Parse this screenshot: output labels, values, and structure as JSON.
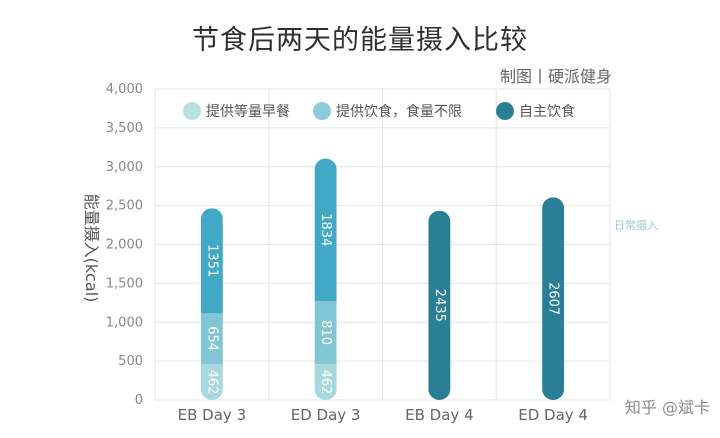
{
  "title": "节食后两天的能量摄入比较",
  "credit": "制图丨硬派健身",
  "watermark": "知乎 @斌卡",
  "chart_data": {
    "type": "bar",
    "stacked": true,
    "categories": [
      "EB Day 3",
      "ED Day 3",
      "EB Day 4",
      "ED Day 4"
    ],
    "series": [
      {
        "name": "提供等量早餐",
        "color": "#a7d8dd",
        "values": [
          462,
          462,
          null,
          null
        ]
      },
      {
        "name": "提供饮食，食量不限",
        "color": "#82c5d4",
        "values": [
          654,
          810,
          null,
          null
        ]
      },
      {
        "name": "自主饮食",
        "color": "#41a9c6",
        "values": [
          1351,
          1834,
          null,
          null
        ]
      },
      {
        "name": "自主饮食",
        "color": "#2a7f97",
        "values": [
          null,
          null,
          2435,
          2607
        ]
      }
    ],
    "legend": [
      {
        "label": "提供等量早餐",
        "color": "#b8e0e0"
      },
      {
        "label": "提供饮食，食量不限",
        "color": "#8ccbd9"
      },
      {
        "label": "自主饮食",
        "color": "#2a7f97"
      }
    ],
    "ylabel": "能量摄入(kcal)",
    "ylim": [
      0,
      4000
    ],
    "yticks": [
      "0",
      "500",
      "1,000",
      "1,500",
      "2,000",
      "2,500",
      "3,000",
      "3,500",
      "4,000"
    ],
    "reference_line": {
      "label": "日常摄入",
      "value": 2250
    },
    "grid": true
  }
}
